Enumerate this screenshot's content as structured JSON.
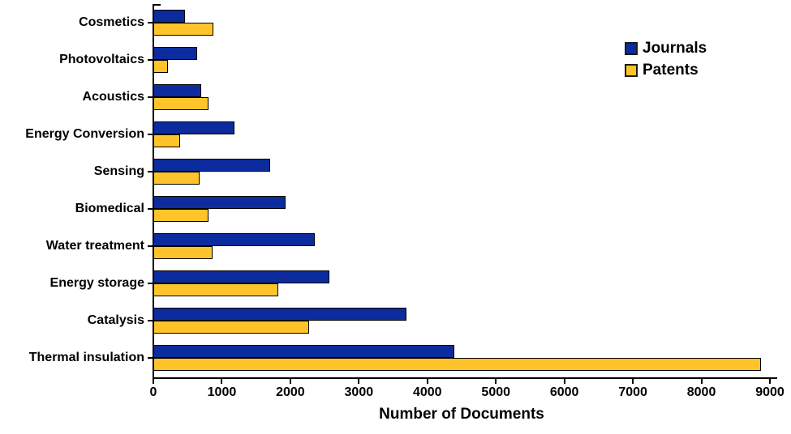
{
  "figure": {
    "background_color": "#ffffff",
    "axis_color": "#000000"
  },
  "legend": {
    "position": "top-right",
    "items": [
      {
        "label": "Journals",
        "color": "#0c2c9e"
      },
      {
        "label": "Patents",
        "color": "#ffc42a"
      }
    ]
  },
  "chart_data": {
    "type": "bar",
    "orientation": "horizontal",
    "title": "",
    "xlabel": "Number of Documents",
    "ylabel": "",
    "xlim": [
      0,
      9000
    ],
    "xticks": [
      0,
      1000,
      2000,
      3000,
      4000,
      5000,
      6000,
      7000,
      8000,
      9000
    ],
    "grid": false,
    "legend_position": "top-right",
    "bar_border_color": "#000000",
    "categories": [
      "Cosmetics",
      "Photovoltaics",
      "Acoustics",
      "Energy Conversion",
      "Sensing",
      "Biomedical",
      "Water treatment",
      "Energy storage",
      "Catalysis",
      "Thermal insulation"
    ],
    "series": [
      {
        "name": "Journals",
        "color": "#0c2c9e",
        "values": [
          460,
          640,
          700,
          1190,
          1700,
          1930,
          2360,
          2570,
          3700,
          4390
        ]
      },
      {
        "name": "Patents",
        "color": "#ffc42a",
        "values": [
          880,
          210,
          810,
          395,
          670,
          810,
          860,
          1820,
          2270,
          8870
        ]
      }
    ]
  }
}
